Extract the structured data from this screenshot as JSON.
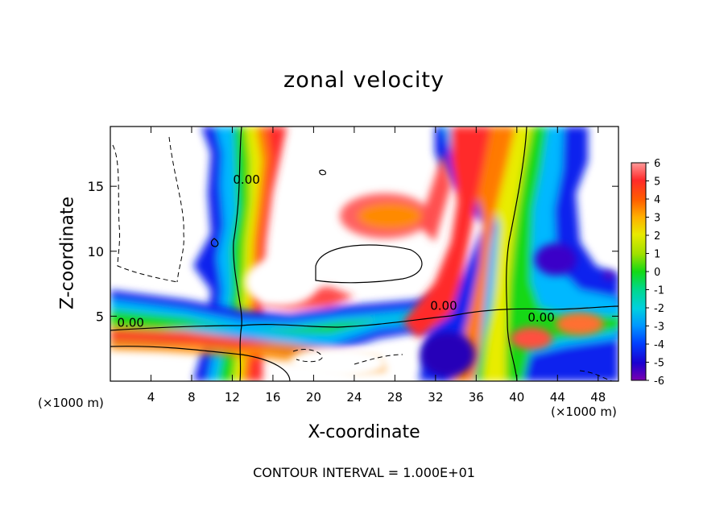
{
  "chart_data": {
    "type": "contour-filled",
    "title": "zonal velocity",
    "xlabel": "X-coordinate",
    "ylabel": "Z-coordinate",
    "x_unit": "(×1000 m)",
    "z_unit": "(×1000 m)",
    "xlim": [
      0,
      50
    ],
    "ylim": [
      0,
      19.6
    ],
    "x_ticks": [
      4,
      8,
      12,
      16,
      20,
      24,
      28,
      32,
      36,
      40,
      44,
      48
    ],
    "y_ticks": [
      5,
      10,
      15
    ],
    "colorbar": {
      "range": [
        -6,
        6
      ],
      "ticks": [
        6,
        5,
        4,
        3,
        2,
        1,
        0,
        -1,
        -2,
        -3,
        -4,
        -5,
        -6
      ]
    },
    "contour_labels": [
      {
        "text": "0.00",
        "x": 2.0,
        "y": 4.2
      },
      {
        "text": "0.00",
        "x": 13.4,
        "y": 15.2
      },
      {
        "text": "0.00",
        "x": 32.8,
        "y": 5.5
      },
      {
        "text": "0.00",
        "x": 42.4,
        "y": 4.6
      }
    ],
    "footer": "CONTOUR INTERVAL = 1.000E+01"
  }
}
